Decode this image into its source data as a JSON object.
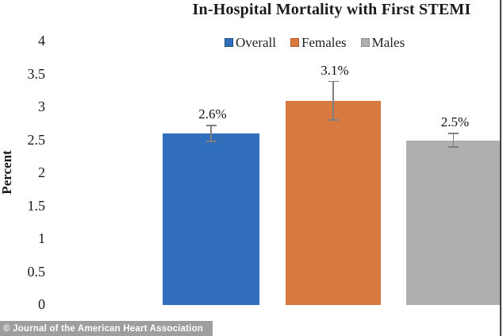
{
  "title": "In-Hospital Mortality with First STEMI",
  "footer": {
    "text": "© Journal of the American Heart Association",
    "bg_color": "#9E9E9E",
    "text_color": "#FFFFFF"
  },
  "chart_data": {
    "type": "bar",
    "title": "In-Hospital Mortality with First STEMI",
    "xlabel": "",
    "ylabel": "Percent",
    "ylim": [
      0,
      4
    ],
    "yticks": [
      0,
      0.5,
      1,
      1.5,
      2,
      2.5,
      3,
      3.5,
      4
    ],
    "ytick_labels": [
      "0",
      "0.5",
      "1",
      "1.5",
      "2",
      "2.5",
      "3",
      "3.5",
      "4"
    ],
    "grid": false,
    "legend_position": "top",
    "categories": [
      "Overall",
      "Females",
      "Males"
    ],
    "values": [
      2.6,
      3.1,
      2.5
    ],
    "data_labels": [
      "2.6%",
      "3.1%",
      "2.5%"
    ],
    "error_bars": [
      0.13,
      0.3,
      0.11
    ],
    "series_colors": [
      "#316FBC",
      "#D87A40",
      "#AFAFAF"
    ],
    "swatch_border_colors": [
      "#1F4E79",
      "#B55A28",
      "#8F8F8F"
    ],
    "error_bar_color": "#808080"
  }
}
